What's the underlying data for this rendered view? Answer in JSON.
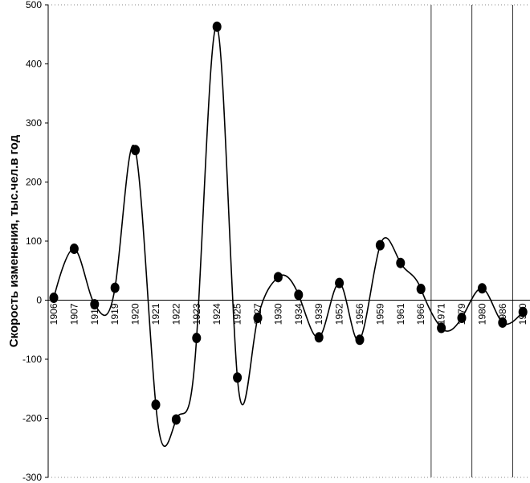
{
  "chart_data": {
    "type": "line",
    "title": "",
    "xlabel": "",
    "ylabel": "Скорость изменения, тыс.чел.в год",
    "ylim": [
      -300,
      500
    ],
    "yticks": [
      500,
      400,
      300,
      200,
      100,
      0,
      -100,
      -200,
      -300
    ],
    "grid": false,
    "smooth": true,
    "categories": [
      "1906",
      "1907",
      "1917",
      "1919",
      "1920",
      "1921",
      "1922",
      "1923",
      "1924",
      "1925",
      "1927",
      "1930",
      "1934",
      "1939",
      "1952",
      "1956",
      "1959",
      "1961",
      "1966",
      "1971",
      "1979",
      "1980",
      "1986",
      "1990"
    ],
    "values": [
      4,
      87,
      -7,
      21,
      254,
      -177,
      -202,
      -64,
      463,
      -131,
      -30,
      39,
      9,
      -63,
      29,
      -67,
      93,
      63,
      19,
      -47,
      -30,
      20,
      -38,
      -20
    ],
    "vertical_lines_after_category_index": [
      18,
      20,
      22,
      23
    ]
  }
}
